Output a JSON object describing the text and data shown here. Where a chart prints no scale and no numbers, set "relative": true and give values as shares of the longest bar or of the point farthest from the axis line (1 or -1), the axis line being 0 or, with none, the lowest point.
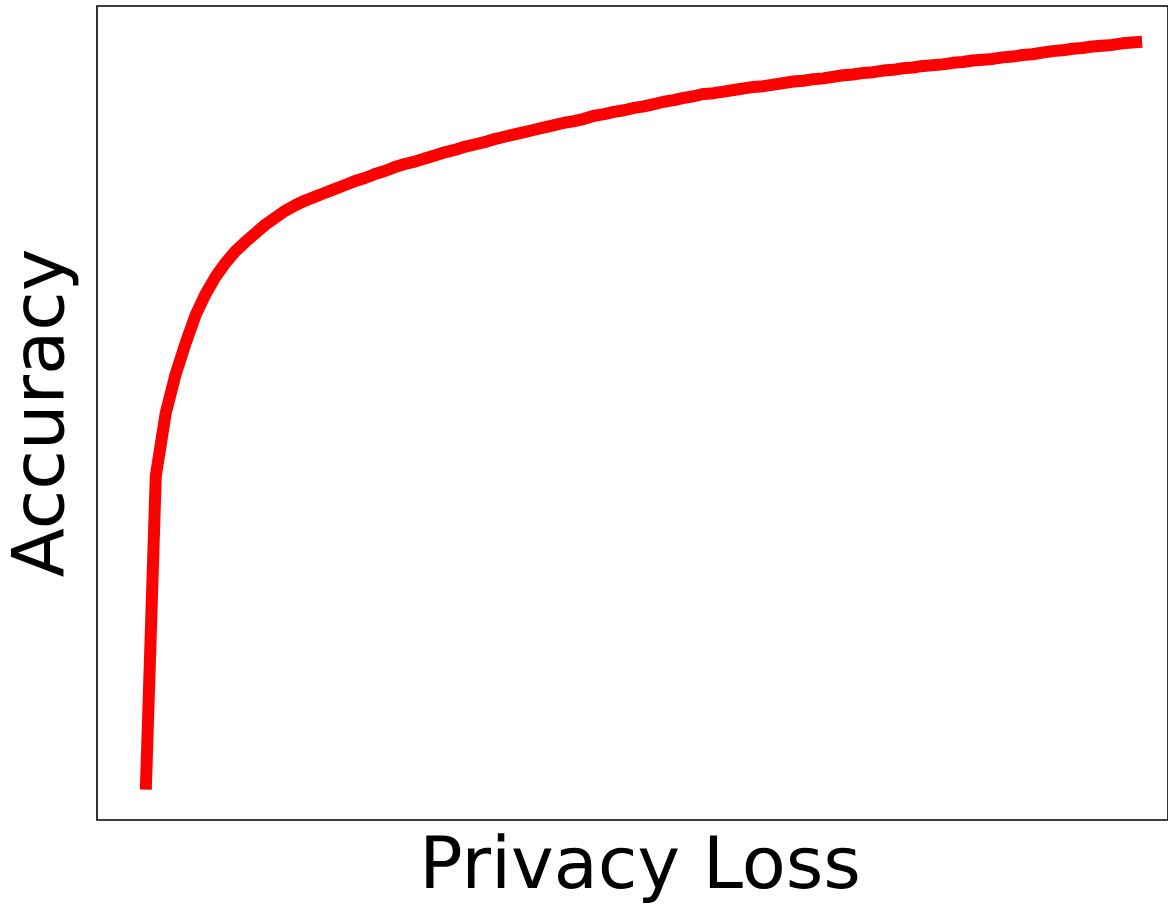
{
  "chart_data": {
    "type": "line",
    "relative": true,
    "xlabel": "Privacy Loss",
    "ylabel": "Accuracy",
    "categories": [
      null,
      null,
      null,
      null,
      null,
      null,
      null,
      null,
      null,
      null,
      null,
      null,
      null,
      null,
      null,
      null,
      null,
      null,
      null,
      null,
      null,
      null,
      null,
      null,
      null,
      null,
      null,
      null,
      null,
      null,
      null,
      null,
      null,
      null,
      null,
      null,
      null,
      null,
      null,
      null,
      null,
      null,
      null,
      null,
      null,
      null,
      null,
      null,
      null,
      null,
      null,
      null,
      null,
      null,
      null,
      null,
      null,
      null,
      null,
      null,
      null,
      null,
      null,
      null,
      null,
      null,
      null,
      null,
      null,
      null,
      null,
      null,
      null,
      null,
      null,
      null,
      null,
      null,
      null,
      null,
      null,
      null,
      null,
      null,
      null,
      null,
      null,
      null,
      null,
      null,
      null,
      null,
      null,
      null,
      null,
      null,
      null,
      null,
      null,
      null,
      null
    ],
    "series": [
      {
        "color": "#ff0000",
        "values": [
          0.039,
          0.442,
          0.523,
          0.573,
          0.613,
          0.649,
          0.676,
          0.698,
          0.716,
          0.731,
          0.743,
          0.754,
          0.765,
          0.774,
          0.783,
          0.79,
          0.796,
          0.801,
          0.806,
          0.811,
          0.816,
          0.821,
          0.825,
          0.83,
          0.834,
          0.839,
          0.843,
          0.846,
          0.85,
          0.854,
          0.858,
          0.861,
          0.865,
          0.868,
          0.871,
          0.875,
          0.878,
          0.881,
          0.884,
          0.887,
          0.89,
          0.893,
          0.896,
          0.898,
          0.901,
          0.905,
          0.907,
          0.91,
          0.912,
          0.915,
          0.917,
          0.92,
          0.923,
          0.925,
          0.928,
          0.93,
          0.933,
          0.934,
          0.936,
          0.938,
          0.94,
          0.942,
          0.943,
          0.945,
          0.947,
          0.949,
          0.95,
          0.952,
          0.953,
          0.955,
          0.957,
          0.958,
          0.96,
          0.961,
          0.963,
          0.964,
          0.966,
          0.967,
          0.969,
          0.97,
          0.971,
          0.973,
          0.974,
          0.976,
          0.977,
          0.978,
          0.98,
          0.981,
          0.983,
          0.984,
          0.986,
          0.988,
          0.989,
          0.991,
          0.992,
          0.994,
          0.995,
          0.996,
          0.998,
          0.999,
          1.0
        ]
      }
    ]
  }
}
